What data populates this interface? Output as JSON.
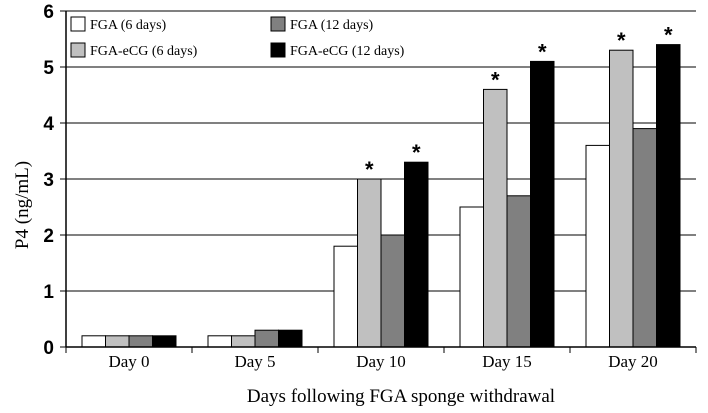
{
  "chart_data": {
    "type": "bar",
    "title": "",
    "xlabel": "Days following FGA sponge withdrawal",
    "ylabel": "P4 (ng/mL)",
    "ylim": [
      0,
      6
    ],
    "yticks": [
      "0",
      "1",
      "2",
      "3",
      "4",
      "5",
      "6"
    ],
    "grid": "horizontal",
    "legend_position": "top-left",
    "categories": [
      "Day 0",
      "Day 5",
      "Day 10",
      "Day 15",
      "Day 20"
    ],
    "series": [
      {
        "name": "FGA (6 days)",
        "color": "#ffffff",
        "values": [
          0.2,
          0.2,
          1.8,
          2.5,
          3.6
        ]
      },
      {
        "name": "FGA-eCG (6 days)",
        "color": "#c0c0c0",
        "values": [
          0.2,
          0.2,
          3.0,
          4.6,
          5.3
        ]
      },
      {
        "name": "FGA (12 days)",
        "color": "#808080",
        "values": [
          0.2,
          0.3,
          2.0,
          2.7,
          3.9
        ]
      },
      {
        "name": "FGA-eCG (12 days)",
        "color": "#000000",
        "values": [
          0.2,
          0.3,
          3.3,
          5.1,
          5.4
        ]
      }
    ],
    "significance_marker": "*",
    "significance": [
      [
        false,
        false,
        false,
        false,
        false
      ],
      [
        false,
        false,
        true,
        true,
        true
      ],
      [
        false,
        false,
        false,
        false,
        false
      ],
      [
        false,
        false,
        true,
        true,
        true
      ]
    ]
  }
}
